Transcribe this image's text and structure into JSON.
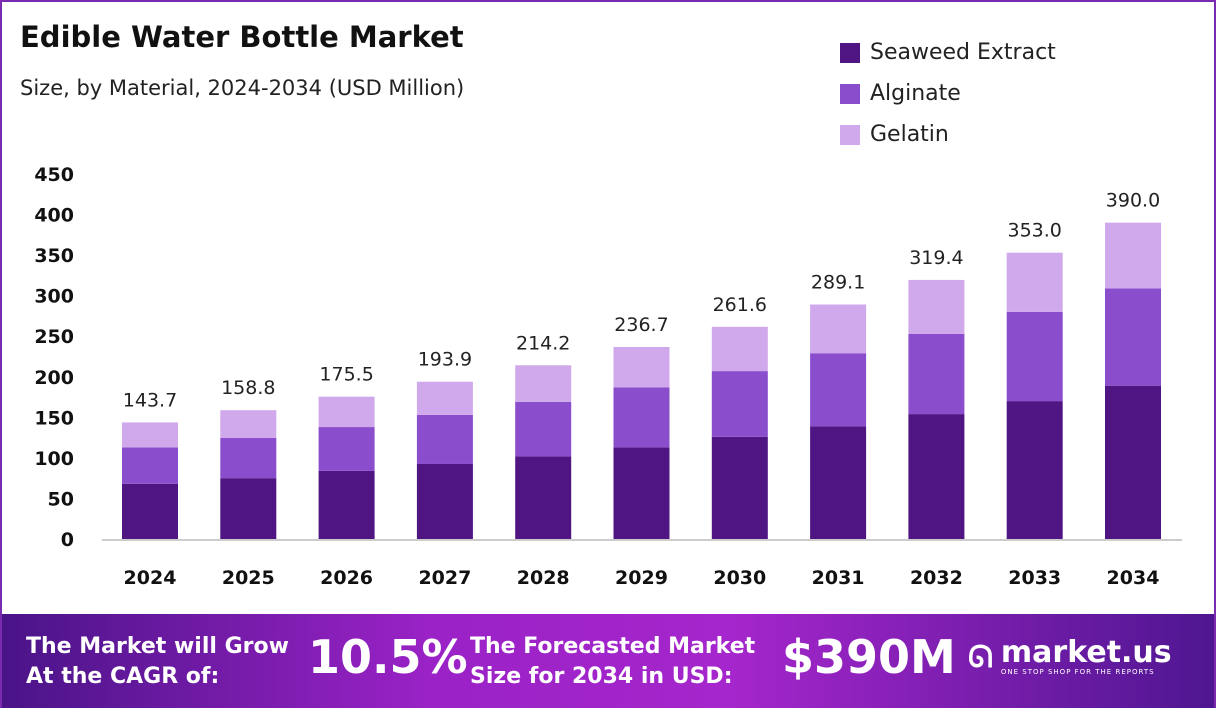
{
  "chart_data": {
    "type": "bar",
    "stacked": true,
    "title": "Edible Water Bottle Market",
    "subtitle": "Size, by Material, 2024-2034 (USD Million)",
    "categories": [
      "2024",
      "2025",
      "2026",
      "2027",
      "2028",
      "2029",
      "2030",
      "2031",
      "2032",
      "2033",
      "2034"
    ],
    "series": [
      {
        "name": "Seaweed Extract",
        "color": "#4f1583",
        "values": [
          68,
          75,
          84,
          92.5,
          102,
          113,
          126,
          139,
          154,
          170,
          189
        ]
      },
      {
        "name": "Alginate",
        "color": "#8a4dcc",
        "values": [
          45,
          49.5,
          54,
          60.5,
          67,
          74,
          81,
          90,
          99,
          110,
          120
        ]
      },
      {
        "name": "Gelatin",
        "color": "#d0a8ec",
        "values": [
          30.7,
          34.3,
          37.5,
          40.9,
          45.2,
          49.7,
          54.6,
          60.1,
          66.4,
          73,
          81
        ]
      }
    ],
    "totals": [
      "143.7",
      "158.8",
      "175.5",
      "193.9",
      "214.2",
      "236.7",
      "261.6",
      "289.1",
      "319.4",
      "353.0",
      "390.0"
    ],
    "yticks": [
      "0",
      "50",
      "100",
      "150",
      "200",
      "250",
      "300",
      "350",
      "400",
      "450"
    ],
    "ylim": [
      0,
      450
    ],
    "grid": false,
    "legend": "top-right"
  },
  "footer": {
    "cagr_label_1": "The Market will Grow",
    "cagr_label_2": "At the CAGR of:",
    "cagr_value": "10.5%",
    "forecast_label_1": "The Forecasted Market",
    "forecast_label_2": "Size for 2034 in USD:",
    "forecast_value": "$390M",
    "logo_name": "market.us",
    "logo_tagline": "ONE STOP SHOP FOR THE REPORTS"
  }
}
